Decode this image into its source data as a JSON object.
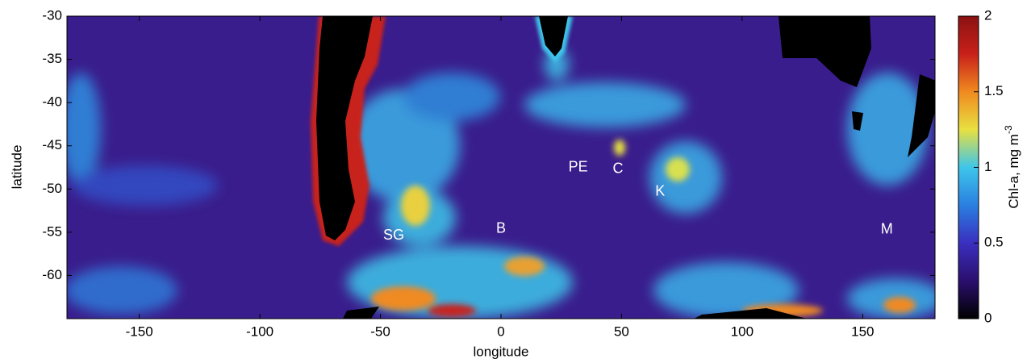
{
  "chart_data": {
    "type": "heatmap",
    "xlabel": "longitude",
    "ylabel": "latitude",
    "xlim": [
      -180,
      180
    ],
    "ylim": [
      -65,
      -30
    ],
    "xticks": [
      -150,
      -100,
      -50,
      0,
      50,
      100,
      150
    ],
    "yticks": [
      -30,
      -35,
      -40,
      -45,
      -50,
      -55,
      -60
    ],
    "background_color": "#3a1d8c",
    "colormap": [
      "#000000",
      "#2b0f6e",
      "#3a2fbf",
      "#2a7fe0",
      "#3ec6ea",
      "#e8e040",
      "#f08a20",
      "#c8201a",
      "#8a1212"
    ],
    "colorbar": {
      "label": "Chl-a, mg m",
      "label_superscript": "-3",
      "lim": [
        0,
        2
      ],
      "ticks": [
        0,
        0.5,
        1,
        1.5,
        2
      ]
    },
    "annotations": [
      {
        "text": "SG",
        "x": -44.5,
        "y": -55.4
      },
      {
        "text": "B",
        "x": 0,
        "y": -54.6
      },
      {
        "text": "PE",
        "x": 32,
        "y": -47.5
      },
      {
        "text": "C",
        "x": 48.5,
        "y": -47.7
      },
      {
        "text": "K",
        "x": 66,
        "y": -50.3
      },
      {
        "text": "M",
        "x": 160,
        "y": -54.7
      }
    ]
  }
}
